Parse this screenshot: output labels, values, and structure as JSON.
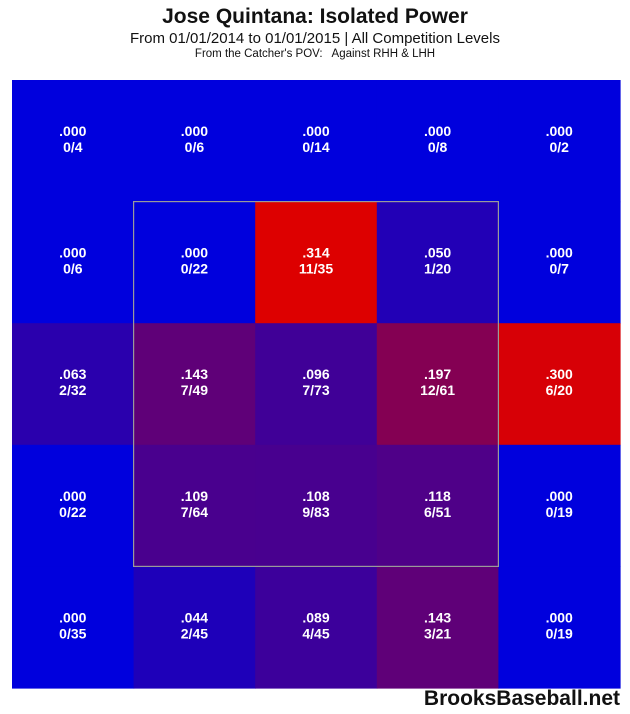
{
  "header": {
    "title": "Jose Quintana: Isolated Power",
    "subtitle": "From 01/01/2014 to 01/01/2015 | All Competition Levels",
    "subsubtitle": "From the Catcher's POV:   Against RHH & LHH"
  },
  "chart_data": {
    "type": "heatmap",
    "metric": "Isolated Power",
    "rows": 5,
    "cols": 5,
    "strike_zone": "inner 3x3 cells",
    "cells": [
      [
        {
          "value": ".000",
          "ratio": "0/4",
          "color": "#0000dd"
        },
        {
          "value": ".000",
          "ratio": "0/6",
          "color": "#0000dd"
        },
        {
          "value": ".000",
          "ratio": "0/14",
          "color": "#0000dd"
        },
        {
          "value": ".000",
          "ratio": "0/8",
          "color": "#0000dd"
        },
        {
          "value": ".000",
          "ratio": "0/2",
          "color": "#0000dd"
        }
      ],
      [
        {
          "value": ".000",
          "ratio": "0/6",
          "color": "#0000dd"
        },
        {
          "value": ".000",
          "ratio": "0/22",
          "color": "#0000dd"
        },
        {
          "value": ".314",
          "ratio": "11/35",
          "color": "#dd0000"
        },
        {
          "value": ".050",
          "ratio": "1/20",
          "color": "#2200b6"
        },
        {
          "value": ".000",
          "ratio": "0/7",
          "color": "#0000dd"
        }
      ],
      [
        {
          "value": ".063",
          "ratio": "2/32",
          "color": "#2a00ad"
        },
        {
          "value": ".143",
          "ratio": "7/49",
          "color": "#5f0078"
        },
        {
          "value": ".096",
          "ratio": "7/73",
          "color": "#400097"
        },
        {
          "value": ".197",
          "ratio": "12/61",
          "color": "#840053"
        },
        {
          "value": ".300",
          "ratio": "6/20",
          "color": "#d70006"
        }
      ],
      [
        {
          "value": ".000",
          "ratio": "0/22",
          "color": "#0000dd"
        },
        {
          "value": ".109",
          "ratio": "7/64",
          "color": "#49008e"
        },
        {
          "value": ".108",
          "ratio": "9/83",
          "color": "#48008f"
        },
        {
          "value": ".118",
          "ratio": "6/51",
          "color": "#4f0088"
        },
        {
          "value": ".000",
          "ratio": "0/19",
          "color": "#0000dd"
        }
      ],
      [
        {
          "value": ".000",
          "ratio": "0/35",
          "color": "#0000dd"
        },
        {
          "value": ".044",
          "ratio": "2/45",
          "color": "#1e00b9"
        },
        {
          "value": ".089",
          "ratio": "4/45",
          "color": "#3c009b"
        },
        {
          "value": ".143",
          "ratio": "3/21",
          "color": "#5f0078"
        },
        {
          "value": ".000",
          "ratio": "0/19",
          "color": "#0000dd"
        }
      ]
    ]
  },
  "footer": {
    "watermark": "BrooksBaseball.net"
  }
}
